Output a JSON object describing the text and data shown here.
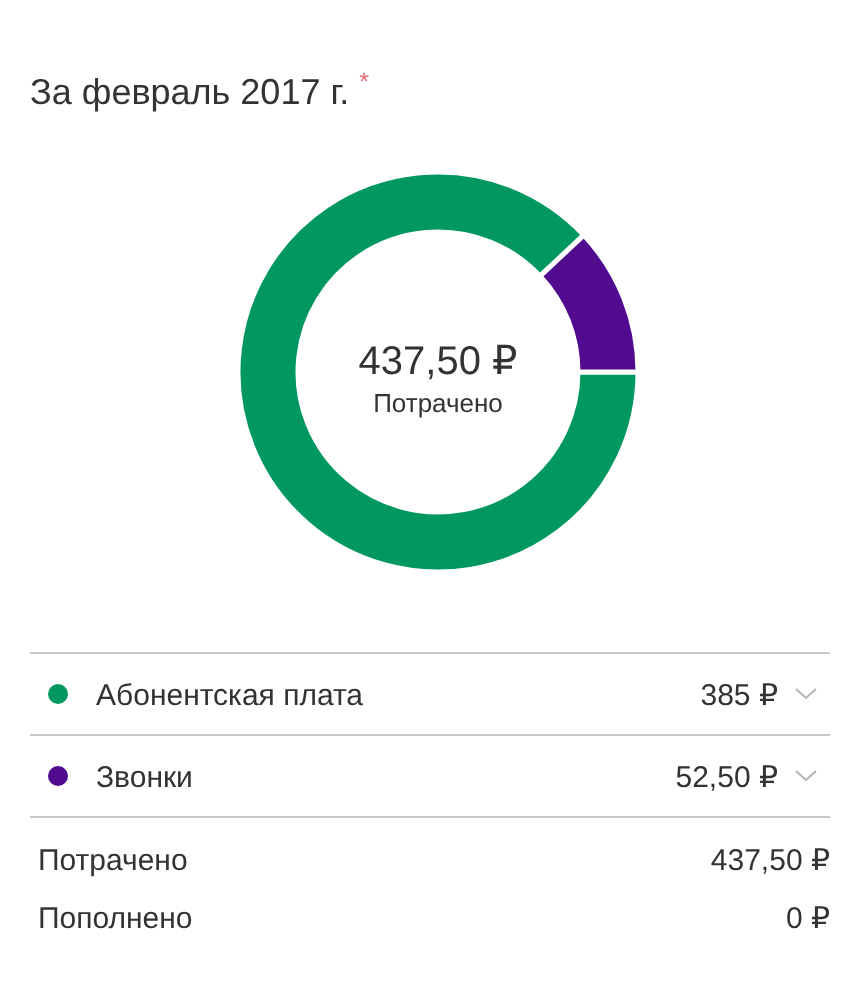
{
  "chart_data": {
    "type": "donut",
    "title": "За февраль 2017 г. $^{*}$",
    "categories": [
      "Абонентская плата",
      "Звонки"
    ],
    "values": [
      385,
      52.5
    ],
    "colors": [
      "#00985f",
      "#520b8f"
    ],
    "value_labels": [
      "385 ₽",
      "52,50 ₽"
    ],
    "legend": "bottom",
    "annotations": [
      "437,50 ₽",
      "Потрачено",
      "Потрачено",
      "437,50 ₽",
      "Пополнено",
      "0 ₽"
    ]
  }
}
